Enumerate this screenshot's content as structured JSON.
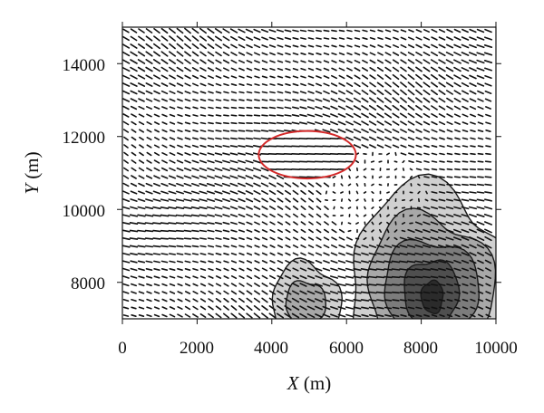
{
  "chart_data": {
    "type": "vector-field-contour",
    "xlabel": {
      "var": "X",
      "unit": " (m)"
    },
    "ylabel": {
      "var": "Y",
      "unit": " (m)"
    },
    "xlim": [
      0,
      10000
    ],
    "ylim": [
      7000,
      15000
    ],
    "xticks": [
      0,
      2000,
      4000,
      6000,
      8000,
      10000
    ],
    "yticks": [
      8000,
      10000,
      12000,
      14000
    ],
    "xtick_labels": [
      "0",
      "2000",
      "4000",
      "6000",
      "8000",
      "10000"
    ],
    "ytick_labels": [
      "8000",
      "10000",
      "12000",
      "14000"
    ],
    "grid": false,
    "colors": {
      "vectors": "#111111",
      "highlight_ellipse": "#d42a2a",
      "contour_fills": [
        "#d0d0d0",
        "#a8a8a8",
        "#7c7c7c",
        "#4f4f4f",
        "#2b2b2b"
      ],
      "contour_lines": "#1a1a1a"
    },
    "highlight_region": {
      "center": [
        4950,
        11500
      ],
      "semi_axes": [
        1300,
        650
      ],
      "shape": "ellipse"
    },
    "contour_regions": [
      {
        "name": "small-hill",
        "peak": [
          4900,
          7400
        ],
        "levels": 2
      },
      {
        "name": "main-hill",
        "peak": [
          8200,
          7800
        ],
        "levels": 5
      }
    ]
  }
}
